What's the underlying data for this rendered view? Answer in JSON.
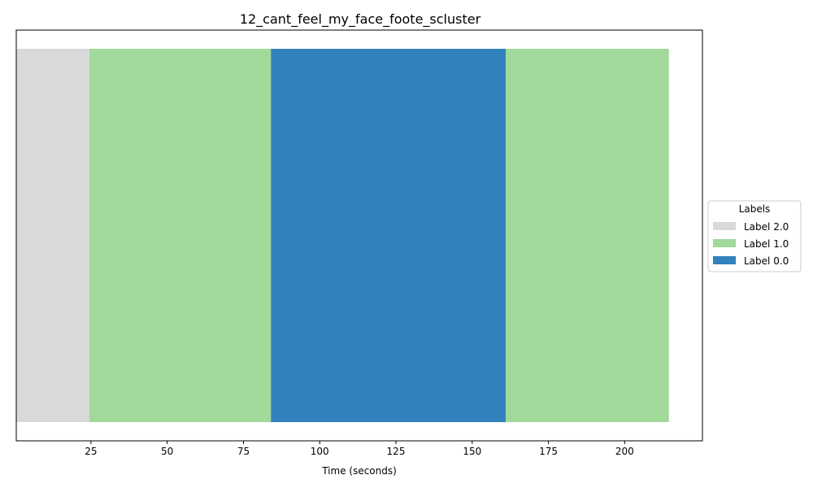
{
  "chart_data": {
    "type": "bar",
    "title": "12_cant_feel_my_face_foote_scluster",
    "xlabel": "Time (seconds)",
    "ylabel": "",
    "xlim": [
      0.5,
      225.5
    ],
    "xticks": [
      25,
      50,
      75,
      100,
      125,
      150,
      175,
      200
    ],
    "legend": {
      "title": "Labels",
      "placement": "center-right-outside",
      "entries": [
        {
          "label": "Label 2.0",
          "color": "#d9d9d9"
        },
        {
          "label": "Label 1.0",
          "color": "#a1d99b"
        },
        {
          "label": "Label 0.0",
          "color": "#3182bd"
        }
      ]
    },
    "segments": [
      {
        "label": "Label 2.0",
        "start": 0.5,
        "end": 24.5,
        "color": "#d9d9d9"
      },
      {
        "label": "Label 1.0",
        "start": 24.5,
        "end": 84.0,
        "color": "#a1d99b"
      },
      {
        "label": "Label 0.0",
        "start": 84.0,
        "end": 161.0,
        "color": "#3182bd"
      },
      {
        "label": "Label 1.0",
        "start": 161.0,
        "end": 214.5,
        "color": "#a1d99b"
      }
    ]
  }
}
